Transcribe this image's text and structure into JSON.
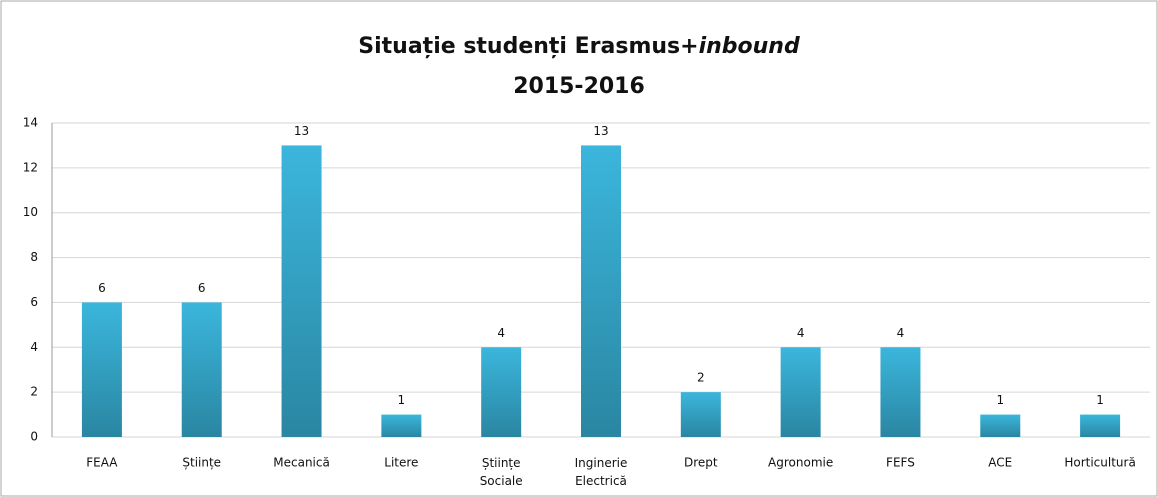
{
  "chart_data": {
    "type": "bar",
    "title": [
      "Situație studenți Erasmus+",
      "inbound"
    ],
    "subtitle": "2015-2016",
    "categories": [
      "FEAA",
      "Științe",
      "Mecanică",
      "Litere",
      "Științe Sociale",
      "Inginerie Electrică",
      "Drept",
      "Agronomie",
      "FEFS",
      "ACE",
      "Horticultură"
    ],
    "values": [
      6,
      6,
      13,
      1,
      4,
      13,
      2,
      4,
      4,
      1,
      1
    ],
    "color": "#33a9cc",
    "ylim": [
      0,
      14
    ],
    "yticks": [
      0,
      2,
      4,
      6,
      8,
      10,
      12,
      14
    ],
    "grid": true
  }
}
